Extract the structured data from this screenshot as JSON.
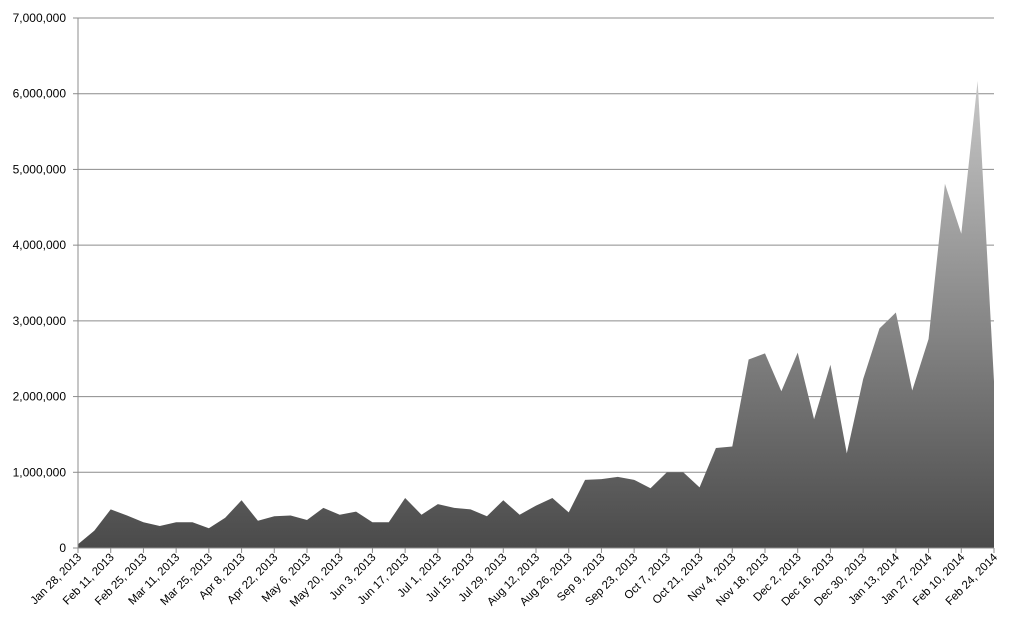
{
  "chart_data": {
    "type": "area",
    "title": "",
    "xlabel": "",
    "ylabel": "",
    "ylim": [
      0,
      7000000
    ],
    "yticks": [
      "0",
      "1,000,000",
      "2,000,000",
      "3,000,000",
      "4,000,000",
      "5,000,000",
      "6,000,000",
      "7,000,000"
    ],
    "ytick_values": [
      0,
      1000000,
      2000000,
      3000000,
      4000000,
      5000000,
      6000000,
      7000000
    ],
    "grid": true,
    "legend": "none",
    "colors": {
      "fill_top": "#c8c8c8",
      "fill_bottom": "#4a4a4a",
      "grid": "#8c8c8c",
      "axis": "#8c8c8c"
    },
    "x_tick_labels": [
      "Jan 28, 2013",
      "Feb 11, 2013",
      "Feb 25, 2013",
      "Mar 11, 2013",
      "Mar 25, 2013",
      "Apr 8, 2013",
      "Apr 22, 2013",
      "May 6, 2013",
      "May 20, 2013",
      "Jun 3, 2013",
      "Jun 17, 2013",
      "Jul 1, 2013",
      "Jul 15, 2013",
      "Jul 29, 2013",
      "Aug 12, 2013",
      "Aug 26, 2013",
      "Sep 9, 2013",
      "Sep 23, 2013",
      "Oct 7, 2013",
      "Oct 21, 2013",
      "Nov 4, 2013",
      "Nov 18, 2013",
      "Dec 2, 2013",
      "Dec 16, 2013",
      "Dec 30, 2013",
      "Jan 13, 2014",
      "Jan 27, 2014",
      "Feb 10, 2014",
      "Feb 24, 2014"
    ],
    "x": [
      "2013-01-28",
      "2013-02-04",
      "2013-02-11",
      "2013-02-18",
      "2013-02-25",
      "2013-03-04",
      "2013-03-11",
      "2013-03-18",
      "2013-03-25",
      "2013-04-01",
      "2013-04-08",
      "2013-04-15",
      "2013-04-22",
      "2013-04-29",
      "2013-05-06",
      "2013-05-13",
      "2013-05-20",
      "2013-05-27",
      "2013-06-03",
      "2013-06-10",
      "2013-06-17",
      "2013-06-24",
      "2013-07-01",
      "2013-07-08",
      "2013-07-15",
      "2013-07-22",
      "2013-07-29",
      "2013-08-05",
      "2013-08-12",
      "2013-08-19",
      "2013-08-26",
      "2013-09-02",
      "2013-09-09",
      "2013-09-16",
      "2013-09-23",
      "2013-09-30",
      "2013-10-07",
      "2013-10-14",
      "2013-10-21",
      "2013-10-28",
      "2013-11-04",
      "2013-11-11",
      "2013-11-18",
      "2013-11-25",
      "2013-12-02",
      "2013-12-09",
      "2013-12-16",
      "2013-12-23",
      "2013-12-30",
      "2014-01-06",
      "2014-01-13",
      "2014-01-20",
      "2014-01-27",
      "2014-02-03",
      "2014-02-10",
      "2014-02-17",
      "2014-02-24"
    ],
    "series": [
      {
        "values": [
          50000,
          230000,
          510000,
          430000,
          340000,
          290000,
          340000,
          340000,
          260000,
          400000,
          630000,
          360000,
          420000,
          430000,
          370000,
          530000,
          440000,
          480000,
          340000,
          340000,
          660000,
          440000,
          580000,
          530000,
          510000,
          420000,
          630000,
          440000,
          560000,
          660000,
          470000,
          900000,
          910000,
          940000,
          900000,
          790000,
          1000000,
          1000000,
          800000,
          1320000,
          1340000,
          2490000,
          2570000,
          2070000,
          2580000,
          1700000,
          2420000,
          1250000,
          2230000,
          2900000,
          3110000,
          2080000,
          2760000,
          4810000,
          4150000,
          6170000,
          2200000
        ]
      }
    ]
  }
}
